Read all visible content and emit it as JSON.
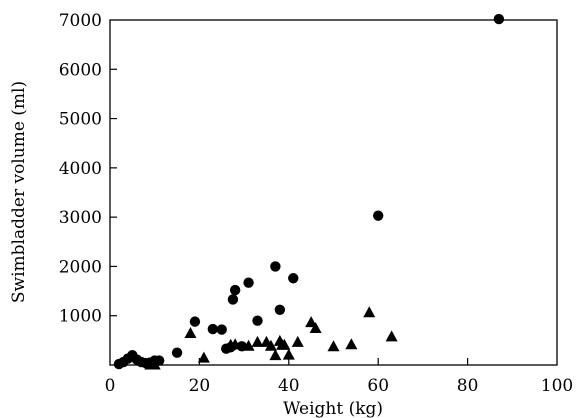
{
  "chart_data": {
    "type": "scatter",
    "xlabel": "Weight (kg)",
    "ylabel": "Swimbladder volume (ml)",
    "xlim": [
      0,
      100
    ],
    "ylim": [
      0,
      7000
    ],
    "x_ticks": [
      "0",
      "20",
      "40",
      "60",
      "80",
      "100"
    ],
    "y_ticks": [
      "1000",
      "2000",
      "3000",
      "4000",
      "5000",
      "6000",
      "7000"
    ],
    "grid": false,
    "series": [
      {
        "marker": "circle",
        "points": [
          [
            2,
            20
          ],
          [
            3,
            60
          ],
          [
            4,
            130
          ],
          [
            5,
            200
          ],
          [
            6,
            110
          ],
          [
            7,
            60
          ],
          [
            8,
            40
          ],
          [
            9,
            50
          ],
          [
            10,
            90
          ],
          [
            11,
            90
          ],
          [
            15,
            250
          ],
          [
            19,
            880
          ],
          [
            23,
            730
          ],
          [
            25,
            720
          ],
          [
            26,
            330
          ],
          [
            27,
            360
          ],
          [
            27.5,
            1330
          ],
          [
            28,
            1520
          ],
          [
            29.5,
            380
          ],
          [
            31,
            1670
          ],
          [
            33,
            900
          ],
          [
            37,
            2000
          ],
          [
            38,
            1120
          ],
          [
            41,
            1760
          ],
          [
            60,
            3030
          ],
          [
            87,
            7020
          ]
        ]
      },
      {
        "marker": "triangle",
        "points": [
          [
            9,
            20
          ],
          [
            10,
            20
          ],
          [
            18,
            660
          ],
          [
            21,
            160
          ],
          [
            27,
            420
          ],
          [
            28,
            430
          ],
          [
            31,
            400
          ],
          [
            33,
            480
          ],
          [
            35,
            480
          ],
          [
            36,
            400
          ],
          [
            37,
            210
          ],
          [
            38,
            500
          ],
          [
            38.5,
            420
          ],
          [
            39,
            420
          ],
          [
            40,
            220
          ],
          [
            42,
            480
          ],
          [
            45,
            880
          ],
          [
            46,
            760
          ],
          [
            50,
            390
          ],
          [
            54,
            430
          ],
          [
            58,
            1080
          ],
          [
            63,
            590
          ]
        ]
      }
    ]
  }
}
